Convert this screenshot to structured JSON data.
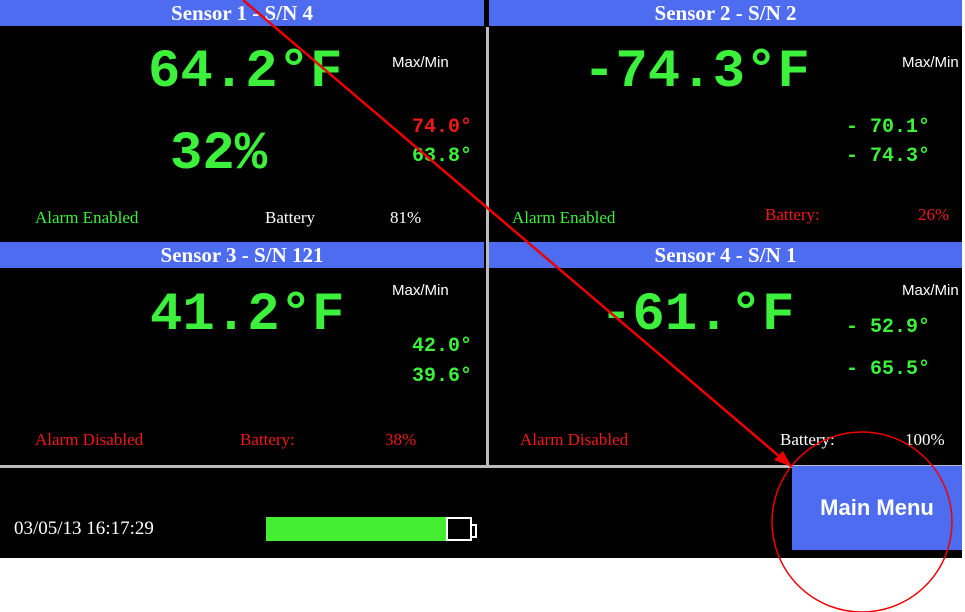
{
  "sensors": [
    {
      "header": "Sensor 1 - S/N 4",
      "temperature": "64.2°F",
      "humidity": "32%",
      "maxmin_label": "Max/Min",
      "max": "74.0°",
      "min": "63.8°",
      "alarm": "Alarm Enabled",
      "battery_label": "Battery",
      "battery": "81%"
    },
    {
      "header": "Sensor 2 - S/N 2",
      "temperature": "-74.3°F",
      "maxmin_label": "Max/Min",
      "max": "- 70.1°",
      "min": "- 74.3°",
      "alarm": "Alarm Enabled",
      "battery_label": "Battery:",
      "battery": "26%"
    },
    {
      "header": "Sensor 3 - S/N 121",
      "temperature": "41.2°F",
      "maxmin_label": "Max/Min",
      "max": "42.0°",
      "min": "39.6°",
      "alarm": "Alarm Disabled",
      "battery_label": "Battery:",
      "battery": "38%"
    },
    {
      "header": "Sensor 4 - S/N 1",
      "temperature": "-61.°F",
      "maxmin_label": "Max/Min",
      "max": "- 52.9°",
      "min": "- 65.5°",
      "alarm": "Alarm Disabled",
      "battery_label": "Battery:",
      "battery": "100%"
    }
  ],
  "footer": {
    "datetime": "03/05/13 16:17:29",
    "main_menu": "Main Menu"
  }
}
